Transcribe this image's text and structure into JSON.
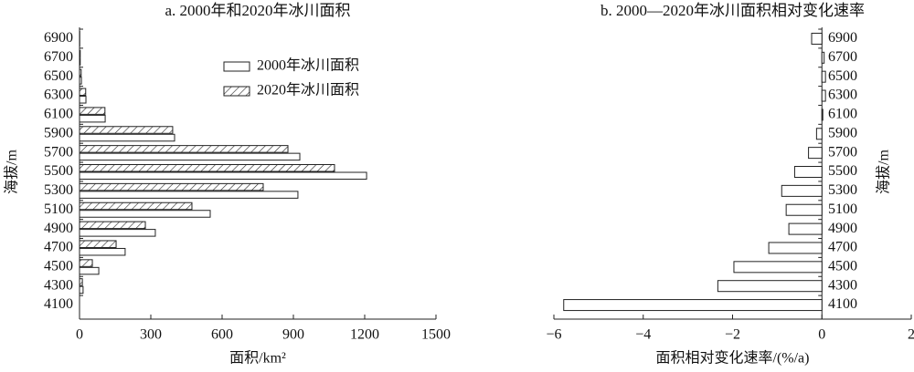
{
  "chart_data": [
    {
      "type": "barh",
      "title": "a. 2000年和2020年冰川面积",
      "xlabel": "面积/km²",
      "ylabel": "海拔/m",
      "categories": [
        "4100",
        "4300",
        "4500",
        "4700",
        "4900",
        "5100",
        "5300",
        "5500",
        "5700",
        "5900",
        "6100",
        "6300",
        "6500",
        "6700",
        "6900"
      ],
      "series": [
        {
          "name": "2000年冰川面积",
          "color": "#ffffff",
          "hatch": false,
          "values": [
            0,
            15,
            81,
            192,
            319,
            550,
            919,
            1208,
            927,
            400,
            108,
            27,
            8,
            3,
            1
          ]
        },
        {
          "name": "2020年冰川面积",
          "color": "#ffffff",
          "hatch": true,
          "values": [
            0,
            12,
            54,
            154,
            277,
            473,
            773,
            1073,
            877,
            392,
            107,
            26,
            7,
            3,
            1
          ]
        }
      ],
      "xlim": [
        0,
        1500
      ],
      "xticks": [
        0,
        300,
        600,
        900,
        1200,
        1500
      ],
      "legend": "upper-center"
    },
    {
      "type": "barh",
      "title": "b. 2000—2020年冰川面积相对变化速率",
      "xlabel": "面积相对变化速率/(%/a)",
      "ylabel": "海拔/m",
      "categories": [
        "4100",
        "4300",
        "4500",
        "4700",
        "4900",
        "5100",
        "5300",
        "5500",
        "5700",
        "5900",
        "6100",
        "6300",
        "6500",
        "6700",
        "6900"
      ],
      "values": [
        -5.78,
        -2.33,
        -1.97,
        -1.19,
        -0.74,
        -0.8,
        -0.9,
        -0.61,
        -0.3,
        -0.12,
        0.02,
        0.08,
        0.08,
        0.05,
        -0.23
      ],
      "color": "#ffffff",
      "xlim": [
        -6,
        2
      ],
      "xticks": [
        {
          "value": -6,
          "label": "−6"
        },
        {
          "value": -4,
          "label": "−4"
        },
        {
          "value": -2,
          "label": "−2"
        },
        0,
        2
      ]
    }
  ]
}
